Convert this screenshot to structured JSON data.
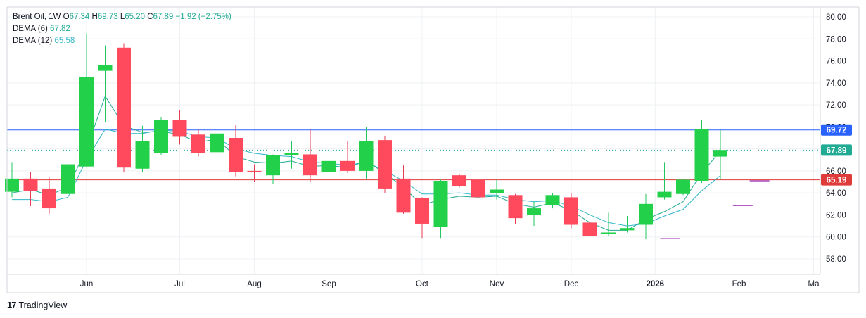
{
  "legend": {
    "symbol": "Brent Oil",
    "interval": "1W",
    "open_label": "O",
    "open": "67.34",
    "high_label": "H",
    "high": "69.73",
    "low_label": "L",
    "low": "65.20",
    "close_label": "C",
    "close": "67.89",
    "change": "−1.92 (−2.75%)",
    "dema6_label": "DEMA (6)",
    "dema6_value": "67.82",
    "dema12_label": "DEMA (12)",
    "dema12_value": "65.58"
  },
  "branding": {
    "logo_text": "TradingView"
  },
  "colors": {
    "up": "#22d04a",
    "down": "#ff4a5e",
    "wick_up": "#22c55e",
    "wick_down": "#e63b52",
    "dema6": "#22ab94",
    "dema12": "#2fb8c8",
    "hline_top": "#2962ff",
    "hline_bottom": "#e03b3b",
    "last_price_line": "#22ab94",
    "grid": "#eef0f3",
    "axis_text": "#131722"
  },
  "chart_data": {
    "type": "candlestick",
    "ylim": [
      56.5,
      81
    ],
    "y_ticks": [
      "58.00",
      "60.00",
      "62.00",
      "64.00",
      "66.00",
      "68.00",
      "70.00",
      "72.00",
      "74.00",
      "76.00",
      "78.00",
      "80.00"
    ],
    "x_labels": [
      {
        "label": "Jun",
        "week": 4,
        "bold": false
      },
      {
        "label": "Jul",
        "week": 9,
        "bold": false
      },
      {
        "label": "Aug",
        "week": 13,
        "bold": false
      },
      {
        "label": "Sep",
        "week": 17,
        "bold": false
      },
      {
        "label": "Oct",
        "week": 22,
        "bold": false
      },
      {
        "label": "Nov",
        "week": 26,
        "bold": false
      },
      {
        "label": "Dec",
        "week": 30,
        "bold": false
      },
      {
        "label": "2026",
        "week": 34.5,
        "bold": true
      },
      {
        "label": "Feb",
        "week": 39,
        "bold": false
      },
      {
        "label": "Ma",
        "week": 43,
        "bold": false
      }
    ],
    "candles": [
      {
        "o": 64.1,
        "h": 66.8,
        "l": 63.6,
        "c": 65.3
      },
      {
        "o": 65.3,
        "h": 65.9,
        "l": 62.8,
        "c": 64.2
      },
      {
        "o": 64.4,
        "h": 65.4,
        "l": 62.1,
        "c": 62.6
      },
      {
        "o": 63.9,
        "h": 67.1,
        "l": 63.7,
        "c": 66.6
      },
      {
        "o": 66.4,
        "h": 78.5,
        "l": 66.3,
        "c": 74.5
      },
      {
        "o": 75.1,
        "h": 77.4,
        "l": 70.4,
        "c": 75.6
      },
      {
        "o": 77.2,
        "h": 77.6,
        "l": 65.9,
        "c": 66.3
      },
      {
        "o": 66.2,
        "h": 70.1,
        "l": 65.9,
        "c": 68.7
      },
      {
        "o": 67.6,
        "h": 70.9,
        "l": 67.4,
        "c": 70.6
      },
      {
        "o": 70.6,
        "h": 71.5,
        "l": 68.4,
        "c": 69.1
      },
      {
        "o": 69.3,
        "h": 69.8,
        "l": 67.3,
        "c": 67.6
      },
      {
        "o": 67.7,
        "h": 72.8,
        "l": 67.5,
        "c": 69.4
      },
      {
        "o": 69.0,
        "h": 70.2,
        "l": 65.5,
        "c": 65.9
      },
      {
        "o": 66.0,
        "h": 66.6,
        "l": 65.0,
        "c": 65.9
      },
      {
        "o": 65.6,
        "h": 67.5,
        "l": 64.8,
        "c": 67.4
      },
      {
        "o": 67.4,
        "h": 68.7,
        "l": 66.2,
        "c": 67.6
      },
      {
        "o": 67.5,
        "h": 69.8,
        "l": 65.0,
        "c": 65.6
      },
      {
        "o": 65.9,
        "h": 68.1,
        "l": 65.7,
        "c": 66.9
      },
      {
        "o": 66.9,
        "h": 68.7,
        "l": 65.8,
        "c": 66.0
      },
      {
        "o": 66.0,
        "h": 70.0,
        "l": 65.3,
        "c": 68.7
      },
      {
        "o": 68.8,
        "h": 69.2,
        "l": 64.0,
        "c": 64.4
      },
      {
        "o": 65.3,
        "h": 66.5,
        "l": 62.1,
        "c": 62.2
      },
      {
        "o": 63.5,
        "h": 63.6,
        "l": 59.9,
        "c": 61.2
      },
      {
        "o": 60.9,
        "h": 65.2,
        "l": 59.9,
        "c": 65.1
      },
      {
        "o": 65.6,
        "h": 65.7,
        "l": 64.5,
        "c": 64.6
      },
      {
        "o": 65.2,
        "h": 65.5,
        "l": 62.8,
        "c": 63.6
      },
      {
        "o": 64.0,
        "h": 65.2,
        "l": 63.4,
        "c": 64.3
      },
      {
        "o": 63.8,
        "h": 63.9,
        "l": 61.2,
        "c": 61.7
      },
      {
        "o": 62.0,
        "h": 63.2,
        "l": 61.0,
        "c": 62.6
      },
      {
        "o": 62.9,
        "h": 64.0,
        "l": 62.6,
        "c": 63.8
      },
      {
        "o": 63.6,
        "h": 64.0,
        "l": 60.8,
        "c": 61.1
      },
      {
        "o": 61.3,
        "h": 61.6,
        "l": 58.7,
        "c": 60.1
      },
      {
        "o": 60.3,
        "h": 62.2,
        "l": 60.1,
        "c": 60.4
      },
      {
        "o": 60.6,
        "h": 61.9,
        "l": 60.4,
        "c": 60.8
      },
      {
        "o": 61.1,
        "h": 63.9,
        "l": 59.8,
        "c": 63.0
      },
      {
        "o": 63.6,
        "h": 66.8,
        "l": 63.4,
        "c": 64.1
      },
      {
        "o": 63.9,
        "h": 65.3,
        "l": 63.8,
        "c": 65.2
      },
      {
        "o": 65.1,
        "h": 70.6,
        "l": 64.9,
        "c": 69.8
      },
      {
        "o": 67.3,
        "h": 69.7,
        "l": 65.2,
        "c": 67.9
      }
    ],
    "dema6": [
      64.0,
      64.3,
      63.8,
      64.5,
      68.0,
      72.8,
      70.1,
      69.5,
      69.6,
      69.3,
      68.6,
      68.9,
      67.3,
      66.8,
      66.7,
      66.9,
      66.4,
      66.5,
      66.3,
      66.9,
      65.8,
      64.5,
      62.9,
      63.4,
      63.7,
      63.6,
      63.7,
      63.0,
      62.7,
      63.1,
      62.4,
      61.3,
      60.6,
      60.6,
      61.6,
      62.3,
      63.2,
      65.8,
      67.82
    ],
    "dema12": [
      63.4,
      63.4,
      63.2,
      63.6,
      67.0,
      69.8,
      69.4,
      69.4,
      69.7,
      69.6,
      69.1,
      69.0,
      68.0,
      67.6,
      67.4,
      67.3,
      66.8,
      66.7,
      66.5,
      66.8,
      66.0,
      65.1,
      63.9,
      63.9,
      64.0,
      63.8,
      63.8,
      63.4,
      63.2,
      63.3,
      62.8,
      62.0,
      61.3,
      61.0,
      61.2,
      61.9,
      62.5,
      64.2,
      65.58
    ],
    "hlines": [
      {
        "price": 69.72,
        "label": "69.72",
        "color_key": "hline_top"
      },
      {
        "price": 65.19,
        "label": "65.19",
        "color_key": "hline_bottom"
      }
    ],
    "last_price": {
      "price": 67.89,
      "label": "67.89"
    },
    "purple_ticks": [
      {
        "week": 35.3,
        "price": 59.85
      },
      {
        "week": 39.2,
        "price": 62.85
      },
      {
        "week": 40.1,
        "price": 65.1
      }
    ],
    "overlapped_axis_label": "70.00"
  }
}
